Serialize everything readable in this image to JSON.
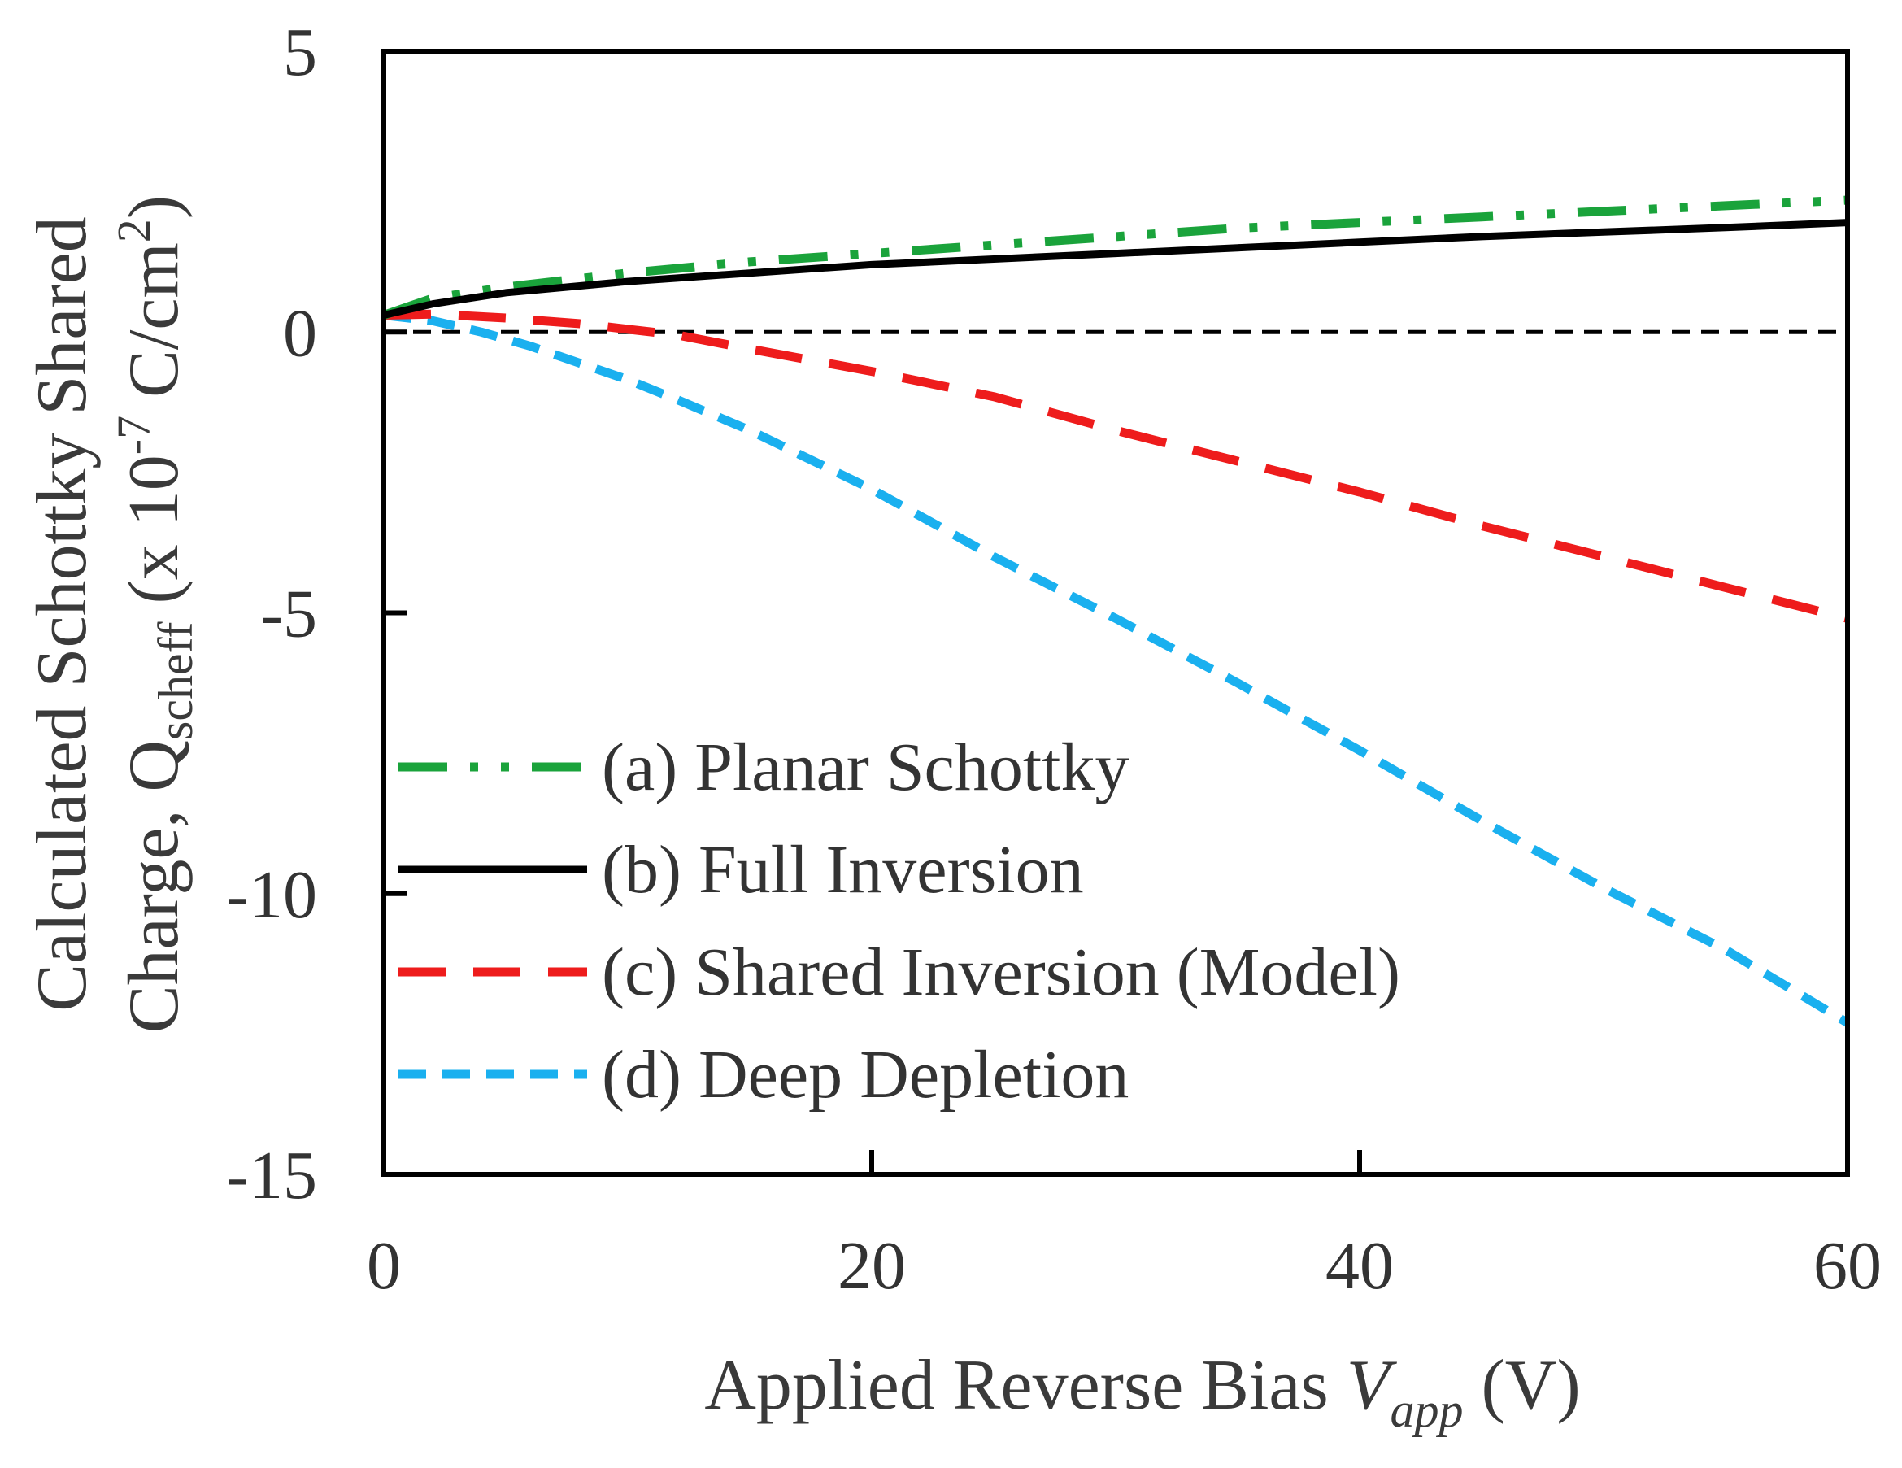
{
  "chart_data": {
    "type": "line",
    "xlabel_main": "Applied Reverse Bias ",
    "xlabel_var": "V",
    "xlabel_sub": "app",
    "xlabel_unit": " (V)",
    "ylabel_line1": "Calculated Schottky Shared",
    "ylabel_line2_pre": "Charge, Q",
    "ylabel_line2_sub": "scheff",
    "ylabel_line2_mid": " (x 10",
    "ylabel_line2_sup1": "-7",
    "ylabel_line2_unit": " C/cm",
    "ylabel_line2_sup2": "2",
    "ylabel_line2_end": ")",
    "xlim": [
      0,
      60
    ],
    "ylim": [
      -15,
      5
    ],
    "xticks": [
      0,
      20,
      40,
      60
    ],
    "xtick_labels": [
      "0",
      "20",
      "40",
      "60"
    ],
    "yticks": [
      5,
      0,
      -5,
      -10,
      -15
    ],
    "ytick_labels": [
      "5",
      "0",
      "-5",
      "-10",
      "-15"
    ],
    "reference_line_y": 0,
    "series": [
      {
        "name": "(a) Planar Schottky",
        "color": "#1aa33b",
        "style": "dash-dot-dot",
        "x": [
          0,
          2,
          5,
          10,
          15,
          20,
          25,
          30,
          35,
          40,
          45,
          50,
          55,
          60
        ],
        "y": [
          0.3,
          0.6,
          0.8,
          1.05,
          1.25,
          1.4,
          1.55,
          1.7,
          1.85,
          1.95,
          2.05,
          2.15,
          2.25,
          2.35
        ]
      },
      {
        "name": "(b) Full Inversion",
        "color": "#000000",
        "style": "solid",
        "x": [
          0,
          2,
          5,
          10,
          15,
          20,
          25,
          30,
          35,
          40,
          45,
          50,
          55,
          60
        ],
        "y": [
          0.3,
          0.5,
          0.7,
          0.9,
          1.05,
          1.2,
          1.3,
          1.4,
          1.5,
          1.6,
          1.7,
          1.78,
          1.86,
          1.95
        ]
      },
      {
        "name": "(c) Shared Inversion (Model)",
        "color": "#ee1c1c",
        "style": "dashed",
        "x": [
          0,
          2,
          5,
          8,
          10,
          12,
          15,
          20,
          25,
          30,
          35,
          40,
          45,
          50,
          55,
          60
        ],
        "y": [
          0.3,
          0.32,
          0.25,
          0.15,
          0.05,
          -0.05,
          -0.3,
          -0.7,
          -1.15,
          -1.75,
          -2.3,
          -2.85,
          -3.45,
          -4.0,
          -4.55,
          -5.1
        ]
      },
      {
        "name": "(d) Deep Depletion",
        "color": "#1ab0ef",
        "style": "short-dashed",
        "x": [
          0,
          2,
          4,
          6,
          8,
          10,
          12,
          15,
          20,
          25,
          30,
          35,
          40,
          45,
          50,
          55,
          60
        ],
        "y": [
          0.3,
          0.2,
          0.0,
          -0.25,
          -0.55,
          -0.85,
          -1.2,
          -1.75,
          -2.8,
          -4.0,
          -5.1,
          -6.25,
          -7.45,
          -8.7,
          -9.9,
          -11.0,
          -12.3
        ]
      }
    ]
  }
}
